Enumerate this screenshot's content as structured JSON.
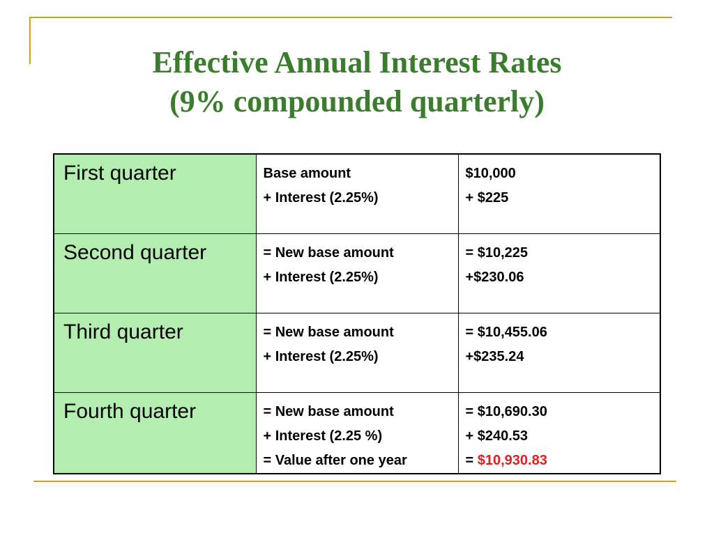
{
  "title": {
    "line1": "Effective Annual Interest Rates",
    "line2": "(9% compounded quarterly)"
  },
  "rows": [
    {
      "quarter": "First quarter",
      "desc": [
        "Base amount",
        "+ Interest (2.25%)"
      ],
      "amount": [
        "$10,000",
        "+ $225"
      ]
    },
    {
      "quarter": "Second quarter",
      "desc": [
        "= New base amount",
        "+ Interest (2.25%)"
      ],
      "amount": [
        "= $10,225",
        "+$230.06"
      ]
    },
    {
      "quarter": "Third quarter",
      "desc": [
        "= New base amount",
        "+ Interest (2.25%)"
      ],
      "amount": [
        "= $10,455.06",
        "+$235.24"
      ]
    },
    {
      "quarter": "Fourth quarter",
      "desc": [
        "= New base amount",
        "+ Interest (2.25 %)",
        "= Value after one year"
      ],
      "amount": [
        "= $10,690.30",
        "+ $240.53"
      ],
      "final_prefix": "= ",
      "final_value": "$10,930.83"
    }
  ],
  "colors": {
    "title": "#3a7d2c",
    "quarter_fill": "#b3eeb0",
    "frame": "#d4a017",
    "highlight": "#e02020"
  }
}
